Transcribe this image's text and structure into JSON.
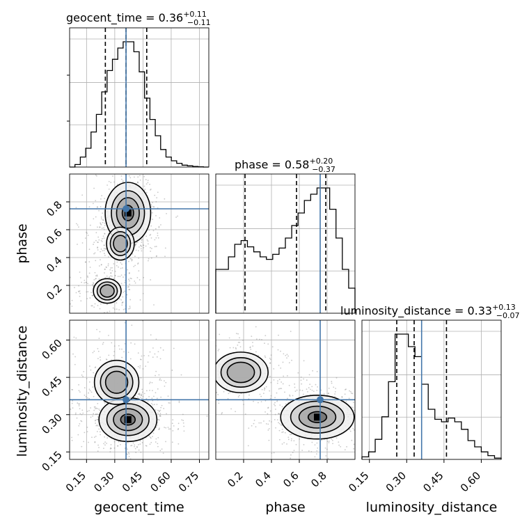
{
  "chart_data": {
    "type": "corner",
    "parameters": [
      {
        "name": "geocent_time",
        "label": "geocent_time",
        "title": "geocent_time = 0.36",
        "title_plus": "+0.11",
        "title_minus": "−0.11",
        "range": [
          0.06,
          0.8
        ],
        "ticks": [
          0.15,
          0.3,
          0.45,
          0.6,
          0.75
        ],
        "tick_labels": [
          "0.15",
          "0.30",
          "0.45",
          "0.60",
          "0.75"
        ],
        "truth": 0.36,
        "quantiles": [
          0.25,
          0.36,
          0.47
        ],
        "hist": [
          0.0,
          0.02,
          0.08,
          0.15,
          0.28,
          0.42,
          0.6,
          0.77,
          0.86,
          0.95,
          1.0,
          1.0,
          0.92,
          0.76,
          0.55,
          0.38,
          0.25,
          0.14,
          0.08,
          0.05,
          0.03,
          0.015,
          0.01,
          0.005,
          0.002,
          0.0
        ]
      },
      {
        "name": "phase",
        "label": "phase",
        "title": "phase = 0.58",
        "title_plus": "+0.20",
        "title_minus": "−0.37",
        "range": [
          0.0,
          1.0
        ],
        "ticks": [
          0.2,
          0.4,
          0.6,
          0.8
        ],
        "tick_labels": [
          "0.2",
          "0.4",
          "0.6",
          "0.8"
        ],
        "tick_labels_y": [
          "0.2",
          "0.4",
          "0.6",
          "0.8"
        ],
        "truth": 0.75,
        "quantiles": [
          0.21,
          0.58,
          0.79
        ],
        "hist": [
          0.35,
          0.35,
          0.45,
          0.55,
          0.58,
          0.53,
          0.49,
          0.45,
          0.43,
          0.47,
          0.52,
          0.6,
          0.7,
          0.8,
          0.9,
          0.95,
          1.0,
          1.0,
          0.83,
          0.6,
          0.35,
          0.2
        ]
      },
      {
        "name": "luminosity_distance",
        "label": "luminosity_distance",
        "title": "luminosity_distance = 0.33",
        "title_plus": "+0.13",
        "title_minus": "−0.07",
        "range": [
          0.12,
          0.68
        ],
        "ticks": [
          0.15,
          0.3,
          0.45,
          0.6
        ],
        "tick_labels": [
          "0.15",
          "0.30",
          "0.45",
          "0.60"
        ],
        "truth": 0.36,
        "quantiles": [
          0.26,
          0.33,
          0.46
        ],
        "hist": [
          0.02,
          0.06,
          0.16,
          0.34,
          0.62,
          1.0,
          1.0,
          0.9,
          0.82,
          0.6,
          0.4,
          0.32,
          0.3,
          0.33,
          0.3,
          0.24,
          0.15,
          0.1,
          0.06,
          0.03,
          0.01
        ]
      }
    ],
    "truth_color": "#4477aa",
    "grid": true,
    "pairs": [
      {
        "x": "geocent_time",
        "y": "phase",
        "modes": [
          {
            "x": 0.37,
            "y": 0.72,
            "sx": 0.055,
            "sy": 0.1,
            "w": 1.0
          },
          {
            "x": 0.33,
            "y": 0.5,
            "sx": 0.05,
            "sy": 0.08,
            "w": 0.45
          },
          {
            "x": 0.26,
            "y": 0.16,
            "sx": 0.05,
            "sy": 0.06,
            "w": 0.45
          }
        ]
      },
      {
        "x": "geocent_time",
        "y": "luminosity_distance",
        "modes": [
          {
            "x": 0.37,
            "y": 0.28,
            "sx": 0.07,
            "sy": 0.04,
            "w": 1.0
          },
          {
            "x": 0.31,
            "y": 0.43,
            "sx": 0.08,
            "sy": 0.06,
            "w": 0.45
          }
        ]
      },
      {
        "x": "phase",
        "y": "luminosity_distance",
        "modes": [
          {
            "x": 0.73,
            "y": 0.29,
            "sx": 0.12,
            "sy": 0.04,
            "w": 1.0
          },
          {
            "x": 0.18,
            "y": 0.47,
            "sx": 0.12,
            "sy": 0.05,
            "w": 0.55
          }
        ]
      }
    ]
  }
}
